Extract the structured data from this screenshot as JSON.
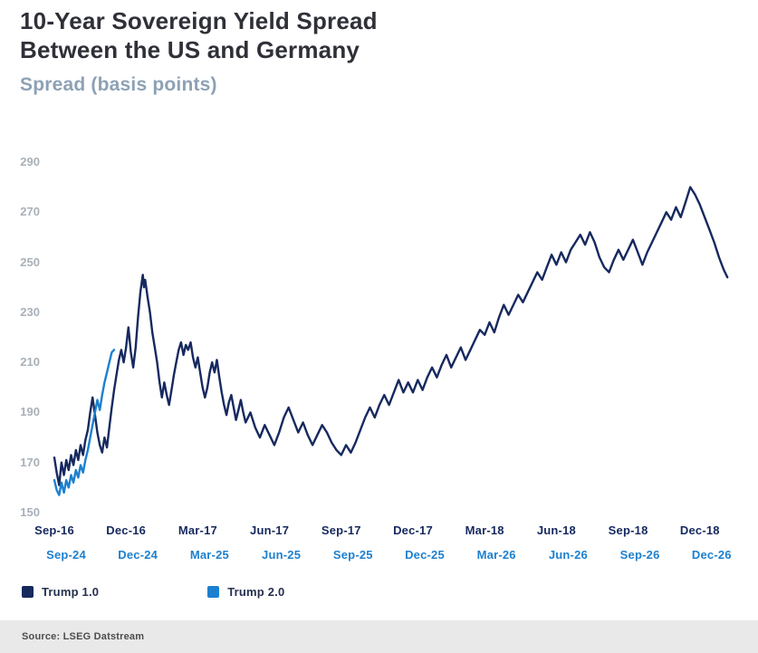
{
  "header": {
    "title_line1": "10-Year Sovereign Yield Spread",
    "title_line2": "Between the US and Germany",
    "subtitle": "Spread (basis points)"
  },
  "legend": [
    {
      "label": "Trump 1.0",
      "color": "#16295f"
    },
    {
      "label": "Trump 2.0",
      "color": "#1d80cf"
    }
  ],
  "source": "Source: LSEG Datstream",
  "colors": {
    "trump1_navy": "#16295f",
    "trump2_blue": "#1d80cf",
    "title_text": "#2f3038",
    "subtitle_text": "#8da1b5",
    "yaxis_gray": "#a9b0b8",
    "xrow1_navy": "#16295f",
    "xrow2_blue": "#1d80cf",
    "source_band": "#e9e9e9"
  },
  "chart_data": {
    "type": "line",
    "title": "10-Year Sovereign Yield Spread Between the US and Germany",
    "ylabel": "Spread (basis points)",
    "ylim": [
      150,
      290
    ],
    "yticks": [
      150,
      170,
      190,
      210,
      230,
      250,
      270,
      290
    ],
    "grid": false,
    "legend_position": "bottom-left",
    "x_axis": {
      "tick_months": [
        0,
        3,
        6,
        9,
        12,
        15,
        18,
        21,
        24,
        27
      ],
      "row1": [
        "Sep-16",
        "Dec-16",
        "Mar-17",
        "Jun-17",
        "Sep-17",
        "Dec-17",
        "Mar-18",
        "Jun-18",
        "Sep-18",
        "Dec-18"
      ],
      "row2": [
        "Sep-24",
        "Dec-24",
        "Mar-25",
        "Jun-25",
        "Sep-25",
        "Dec-25",
        "Mar-26",
        "Jun-26",
        "Sep-26",
        "Dec-26"
      ]
    },
    "xlim_months": [
      -0.3,
      28.4
    ],
    "series": [
      {
        "name": "Trump 1.0",
        "color": "#16295f",
        "points": [
          [
            0,
            172
          ],
          [
            0.1,
            166
          ],
          [
            0.2,
            161
          ],
          [
            0.3,
            170
          ],
          [
            0.4,
            165
          ],
          [
            0.5,
            171
          ],
          [
            0.6,
            167
          ],
          [
            0.7,
            173
          ],
          [
            0.8,
            169
          ],
          [
            0.9,
            175
          ],
          [
            1.0,
            171
          ],
          [
            1.1,
            177
          ],
          [
            1.2,
            173
          ],
          [
            1.3,
            179
          ],
          [
            1.4,
            183
          ],
          [
            1.5,
            190
          ],
          [
            1.6,
            196
          ],
          [
            1.7,
            189
          ],
          [
            1.8,
            182
          ],
          [
            1.9,
            177
          ],
          [
            2.0,
            174
          ],
          [
            2.1,
            180
          ],
          [
            2.2,
            176
          ],
          [
            2.3,
            184
          ],
          [
            2.4,
            192
          ],
          [
            2.5,
            199
          ],
          [
            2.6,
            205
          ],
          [
            2.7,
            211
          ],
          [
            2.8,
            215
          ],
          [
            2.9,
            210
          ],
          [
            3.0,
            216
          ],
          [
            3.1,
            224
          ],
          [
            3.2,
            214
          ],
          [
            3.3,
            208
          ],
          [
            3.4,
            216
          ],
          [
            3.5,
            228
          ],
          [
            3.6,
            238
          ],
          [
            3.7,
            245
          ],
          [
            3.75,
            240
          ],
          [
            3.8,
            243
          ],
          [
            3.9,
            236
          ],
          [
            4.0,
            230
          ],
          [
            4.1,
            222
          ],
          [
            4.2,
            216
          ],
          [
            4.3,
            210
          ],
          [
            4.4,
            202
          ],
          [
            4.5,
            196
          ],
          [
            4.6,
            202
          ],
          [
            4.7,
            197
          ],
          [
            4.8,
            193
          ],
          [
            4.9,
            199
          ],
          [
            5.0,
            205
          ],
          [
            5.1,
            210
          ],
          [
            5.2,
            215
          ],
          [
            5.3,
            218
          ],
          [
            5.4,
            213
          ],
          [
            5.5,
            217
          ],
          [
            5.6,
            215
          ],
          [
            5.7,
            218
          ],
          [
            5.8,
            212
          ],
          [
            5.9,
            208
          ],
          [
            6.0,
            212
          ],
          [
            6.1,
            206
          ],
          [
            6.2,
            200
          ],
          [
            6.3,
            196
          ],
          [
            6.4,
            200
          ],
          [
            6.5,
            206
          ],
          [
            6.6,
            210
          ],
          [
            6.7,
            206
          ],
          [
            6.8,
            211
          ],
          [
            6.9,
            204
          ],
          [
            7.0,
            198
          ],
          [
            7.1,
            193
          ],
          [
            7.2,
            189
          ],
          [
            7.3,
            194
          ],
          [
            7.4,
            197
          ],
          [
            7.5,
            192
          ],
          [
            7.6,
            187
          ],
          [
            7.7,
            191
          ],
          [
            7.8,
            195
          ],
          [
            7.9,
            190
          ],
          [
            8.0,
            186
          ],
          [
            8.2,
            190
          ],
          [
            8.4,
            184
          ],
          [
            8.6,
            180
          ],
          [
            8.8,
            185
          ],
          [
            9.0,
            181
          ],
          [
            9.2,
            177
          ],
          [
            9.4,
            182
          ],
          [
            9.6,
            188
          ],
          [
            9.8,
            192
          ],
          [
            10.0,
            187
          ],
          [
            10.2,
            182
          ],
          [
            10.4,
            186
          ],
          [
            10.6,
            181
          ],
          [
            10.8,
            177
          ],
          [
            11.0,
            181
          ],
          [
            11.2,
            185
          ],
          [
            11.4,
            182
          ],
          [
            11.6,
            178
          ],
          [
            11.8,
            175
          ],
          [
            12.0,
            173
          ],
          [
            12.2,
            177
          ],
          [
            12.4,
            174
          ],
          [
            12.6,
            178
          ],
          [
            12.8,
            183
          ],
          [
            13.0,
            188
          ],
          [
            13.2,
            192
          ],
          [
            13.4,
            188
          ],
          [
            13.6,
            193
          ],
          [
            13.8,
            197
          ],
          [
            14.0,
            193
          ],
          [
            14.2,
            198
          ],
          [
            14.4,
            203
          ],
          [
            14.6,
            198
          ],
          [
            14.8,
            202
          ],
          [
            15.0,
            198
          ],
          [
            15.2,
            203
          ],
          [
            15.4,
            199
          ],
          [
            15.6,
            204
          ],
          [
            15.8,
            208
          ],
          [
            16.0,
            204
          ],
          [
            16.2,
            209
          ],
          [
            16.4,
            213
          ],
          [
            16.6,
            208
          ],
          [
            16.8,
            212
          ],
          [
            17.0,
            216
          ],
          [
            17.2,
            211
          ],
          [
            17.4,
            215
          ],
          [
            17.6,
            219
          ],
          [
            17.8,
            223
          ],
          [
            18.0,
            221
          ],
          [
            18.2,
            226
          ],
          [
            18.4,
            222
          ],
          [
            18.6,
            228
          ],
          [
            18.8,
            233
          ],
          [
            19.0,
            229
          ],
          [
            19.2,
            233
          ],
          [
            19.4,
            237
          ],
          [
            19.6,
            234
          ],
          [
            19.8,
            238
          ],
          [
            20.0,
            242
          ],
          [
            20.2,
            246
          ],
          [
            20.4,
            243
          ],
          [
            20.6,
            248
          ],
          [
            20.8,
            253
          ],
          [
            21.0,
            249
          ],
          [
            21.2,
            254
          ],
          [
            21.4,
            250
          ],
          [
            21.6,
            255
          ],
          [
            21.8,
            258
          ],
          [
            22.0,
            261
          ],
          [
            22.2,
            257
          ],
          [
            22.4,
            262
          ],
          [
            22.6,
            258
          ],
          [
            22.8,
            252
          ],
          [
            23.0,
            248
          ],
          [
            23.2,
            246
          ],
          [
            23.4,
            251
          ],
          [
            23.6,
            255
          ],
          [
            23.8,
            251
          ],
          [
            24.0,
            255
          ],
          [
            24.2,
            259
          ],
          [
            24.4,
            254
          ],
          [
            24.6,
            249
          ],
          [
            24.8,
            254
          ],
          [
            25.0,
            258
          ],
          [
            25.2,
            262
          ],
          [
            25.4,
            266
          ],
          [
            25.6,
            270
          ],
          [
            25.8,
            267
          ],
          [
            26.0,
            272
          ],
          [
            26.2,
            268
          ],
          [
            26.4,
            274
          ],
          [
            26.6,
            280
          ],
          [
            26.8,
            277
          ],
          [
            27.0,
            273
          ],
          [
            27.2,
            268
          ],
          [
            27.4,
            263
          ],
          [
            27.6,
            258
          ],
          [
            27.8,
            252
          ],
          [
            28.0,
            247
          ],
          [
            28.15,
            244
          ]
        ]
      },
      {
        "name": "Trump 2.0",
        "color": "#1d80cf",
        "points": [
          [
            0,
            163
          ],
          [
            0.1,
            159
          ],
          [
            0.2,
            157
          ],
          [
            0.3,
            162
          ],
          [
            0.4,
            158
          ],
          [
            0.5,
            163
          ],
          [
            0.6,
            160
          ],
          [
            0.7,
            165
          ],
          [
            0.8,
            162
          ],
          [
            0.9,
            167
          ],
          [
            1.0,
            164
          ],
          [
            1.1,
            169
          ],
          [
            1.2,
            166
          ],
          [
            1.3,
            171
          ],
          [
            1.4,
            175
          ],
          [
            1.5,
            180
          ],
          [
            1.6,
            185
          ],
          [
            1.7,
            190
          ],
          [
            1.8,
            195
          ],
          [
            1.9,
            191
          ],
          [
            2.0,
            197
          ],
          [
            2.1,
            202
          ],
          [
            2.2,
            206
          ],
          [
            2.3,
            210
          ],
          [
            2.4,
            214
          ],
          [
            2.5,
            215
          ]
        ]
      }
    ]
  }
}
